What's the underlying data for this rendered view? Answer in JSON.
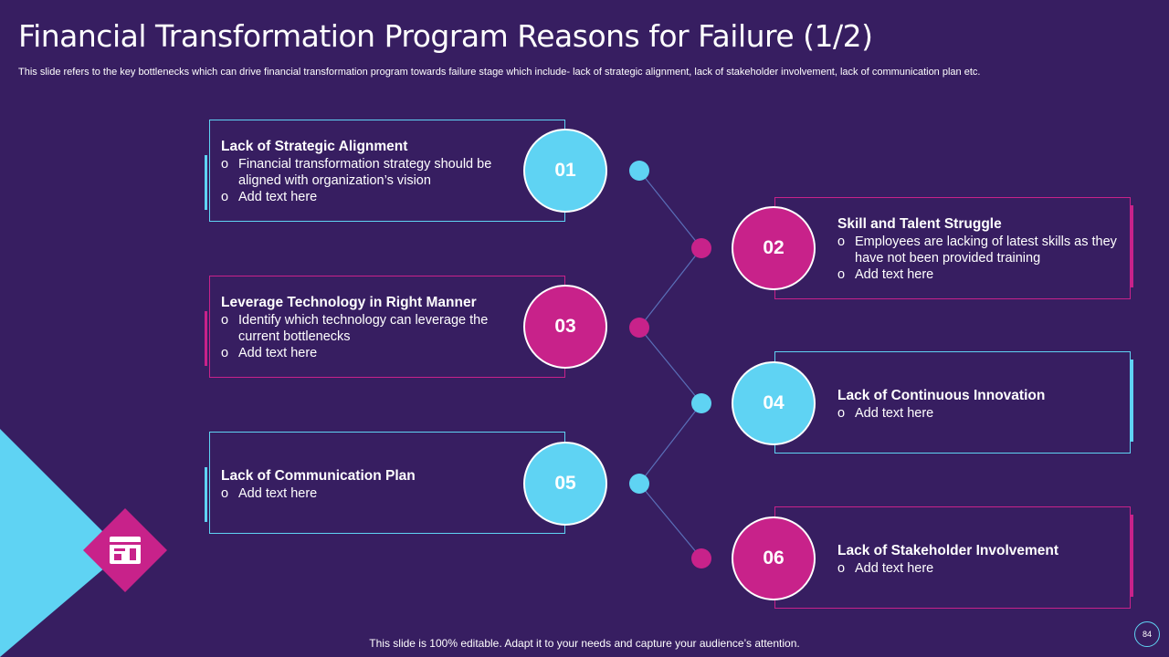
{
  "title": "Financial Transformation Program Reasons for Failure (1/2)",
  "subtitle": "This slide refers to the key bottlenecks which can drive financial transformation program towards failure stage which include- lack of strategic alignment, lack of stakeholder involvement, lack of communication plan etc.",
  "footer": "This slide is 100% editable. Adapt it to your needs and capture your audience’s attention.",
  "page_number": "84",
  "colors": {
    "background": "#371e61",
    "cyan": "#5fd3f3",
    "pink": "#c8228a"
  },
  "bullet_glyph": "o",
  "steps": [
    {
      "number": "01",
      "title": "Lack of Strategic Alignment",
      "items": [
        "Financial transformation strategy should be aligned with organization’s vision",
        "Add text here"
      ]
    },
    {
      "number": "02",
      "title": "Skill and Talent Struggle",
      "items": [
        "Employees are lacking of latest skills as they have not been provided training",
        "Add text here"
      ]
    },
    {
      "number": "03",
      "title": "Leverage Technology in Right Manner",
      "items": [
        "Identify which technology can leverage the current bottlenecks",
        "Add text here"
      ]
    },
    {
      "number": "04",
      "title": "Lack of Continuous Innovation",
      "items": [
        "Add text here"
      ]
    },
    {
      "number": "05",
      "title": "Lack of Communication Plan",
      "items": [
        "Add text here"
      ]
    },
    {
      "number": "06",
      "title": "Lack of Stakeholder Involvement",
      "items": [
        "Add text here"
      ]
    }
  ]
}
